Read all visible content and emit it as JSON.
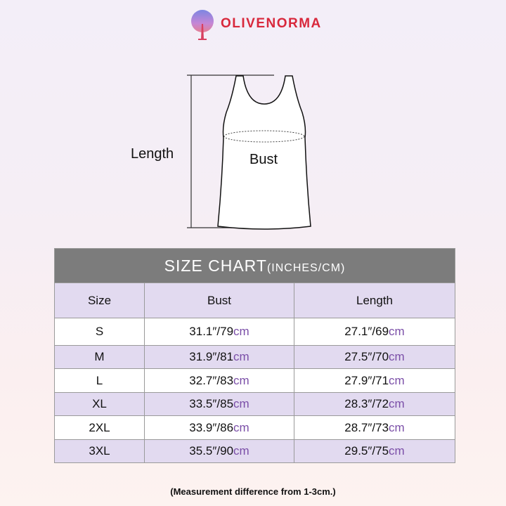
{
  "brand": {
    "name": "OLIVENORMA",
    "color": "#d8283c"
  },
  "diagram": {
    "length_label": "Length",
    "bust_label": "Bust"
  },
  "chart": {
    "title": "SIZE CHART",
    "title_unit": "(INCHES/CM)",
    "headers": [
      "Size",
      "Bust",
      "Length"
    ],
    "rows": [
      {
        "size": "S",
        "bust_in": "31.1″/79",
        "length_in": "27.1″/69"
      },
      {
        "size": "M",
        "bust_in": "31.9″/81",
        "length_in": "27.5″/70"
      },
      {
        "size": "L",
        "bust_in": "32.7″/83",
        "length_in": "27.9″/71"
      },
      {
        "size": "XL",
        "bust_in": "33.5″/85",
        "length_in": "28.3″/72"
      },
      {
        "size": "2XL",
        "bust_in": "33.9″/86",
        "length_in": "28.7″/73"
      },
      {
        "size": "3XL",
        "bust_in": "35.5″/90",
        "length_in": "29.5″/75"
      }
    ],
    "unit": "cm",
    "header_bg": "#7c7c7c",
    "row_alt_bg": "#e2daf0",
    "unit_color": "#7b4fa8"
  },
  "note": "(Measurement difference from 1-3cm.)"
}
